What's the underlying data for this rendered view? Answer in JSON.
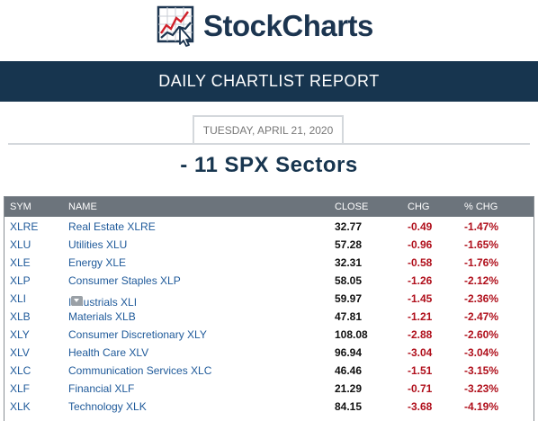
{
  "header": {
    "logo_text": "StockCharts"
  },
  "banner": {
    "title": "DAILY CHARTLIST REPORT"
  },
  "report": {
    "date": "TUESDAY, APRIL 21, 2020",
    "list_title": "- 11 SPX Sectors"
  },
  "table": {
    "columns": {
      "sym": "SYM",
      "name": "NAME",
      "close": "CLOSE",
      "chg": "CHG",
      "pct": "% CHG"
    },
    "rows": [
      {
        "sym": "XLRE",
        "name": "Real Estate XLRE",
        "close": "32.77",
        "chg": "-0.49",
        "pct": "-1.47%"
      },
      {
        "sym": "XLU",
        "name": "Utilities XLU",
        "close": "57.28",
        "chg": "-0.96",
        "pct": "-1.65%"
      },
      {
        "sym": "XLE",
        "name": "Energy XLE",
        "close": "32.31",
        "chg": "-0.58",
        "pct": "-1.76%"
      },
      {
        "sym": "XLP",
        "name": "Consumer Staples XLP",
        "close": "58.05",
        "chg": "-1.26",
        "pct": "-2.12%"
      },
      {
        "sym": "XLI",
        "name": "Industrials XLI",
        "close": "59.97",
        "chg": "-1.45",
        "pct": "-2.36%"
      },
      {
        "sym": "XLB",
        "name": "Materials XLB",
        "close": "47.81",
        "chg": "-1.21",
        "pct": "-2.47%"
      },
      {
        "sym": "XLY",
        "name": "Consumer Discretionary XLY",
        "close": "108.08",
        "chg": "-2.88",
        "pct": "-2.60%"
      },
      {
        "sym": "XLV",
        "name": "Health Care XLV",
        "close": "96.94",
        "chg": "-3.04",
        "pct": "-3.04%"
      },
      {
        "sym": "XLC",
        "name": "Communication Services XLC",
        "close": "46.46",
        "chg": "-1.51",
        "pct": "-3.15%"
      },
      {
        "sym": "XLF",
        "name": "Financial XLF",
        "close": "21.29",
        "chg": "-0.71",
        "pct": "-3.23%"
      },
      {
        "sym": "XLK",
        "name": "Technology XLK",
        "close": "84.15",
        "chg": "-3.68",
        "pct": "-4.19%"
      }
    ]
  },
  "icons": {
    "logo": "stockcharts-logo-icon",
    "row_menu": "chevron-down-icon"
  },
  "colors": {
    "brand_navy": "#17354f",
    "header_gray": "#6c747c",
    "link_blue": "#1f5a9a",
    "negative_red": "#b0101c"
  }
}
